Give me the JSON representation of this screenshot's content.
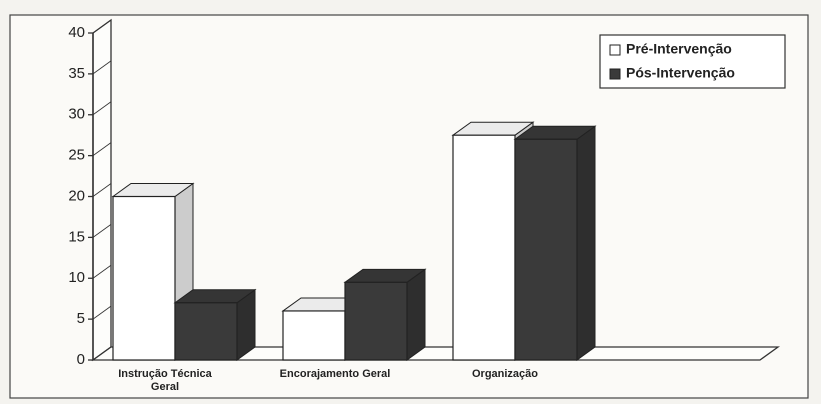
{
  "chart_data": {
    "type": "bar3d",
    "categories": [
      "Instrução Técnica Geral",
      "Encorajamento Geral",
      "Organização"
    ],
    "series": [
      {
        "name": "Pré-Intervenção",
        "color": "#ffffff",
        "values": [
          20,
          6,
          27.5
        ]
      },
      {
        "name": "Pós-Intervenção",
        "color": "#3a3a3a",
        "values": [
          7,
          9.5,
          27
        ]
      }
    ],
    "ylim": [
      0,
      40
    ],
    "yticks": [
      0,
      5,
      10,
      15,
      20,
      25,
      30,
      35,
      40
    ],
    "grid": false,
    "legend": "upper right"
  }
}
